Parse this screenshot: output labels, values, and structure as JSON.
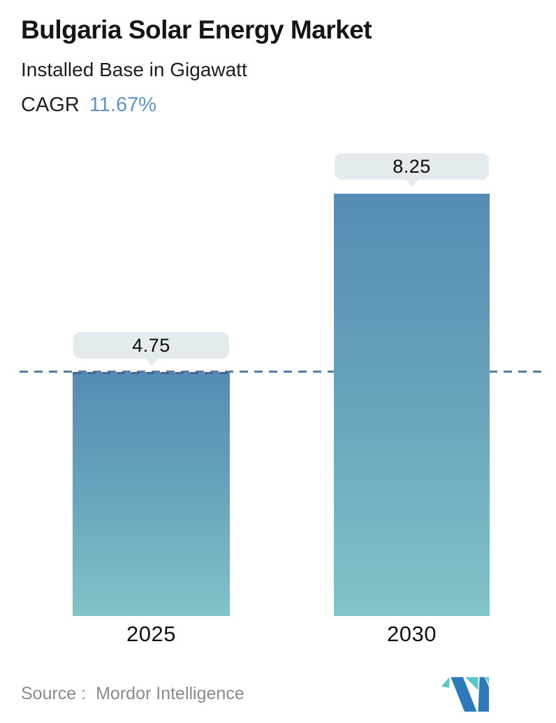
{
  "header": {
    "title": "Bulgaria Solar Energy Market",
    "subtitle": "Installed Base in Gigawatt",
    "cagr_label": "CAGR",
    "cagr_value": "11.67%"
  },
  "chart_data": {
    "type": "bar",
    "title": "Bulgaria Solar Energy Market",
    "subtitle": "Installed Base in Gigawatt",
    "unit": "Gigawatt",
    "cagr_percent": 11.67,
    "categories": [
      "2025",
      "2030"
    ],
    "values": [
      4.75,
      8.25
    ],
    "value_labels": [
      "4.75",
      "8.25"
    ],
    "ylim": [
      0,
      8.25
    ],
    "grid": false,
    "legend": false,
    "reference_line": {
      "value": 4.75,
      "style": "dashed",
      "color": "#527ea8"
    },
    "bar_gradient_top": "#568bb3",
    "bar_gradient_bottom": "#81c4c9",
    "label_bubble_bg": "#e4ebee"
  },
  "footer": {
    "source_label": "Source :",
    "source_name": "Mordor Intelligence",
    "logo_blue": "#2e7ab8",
    "logo_teal": "#57c7ca"
  }
}
